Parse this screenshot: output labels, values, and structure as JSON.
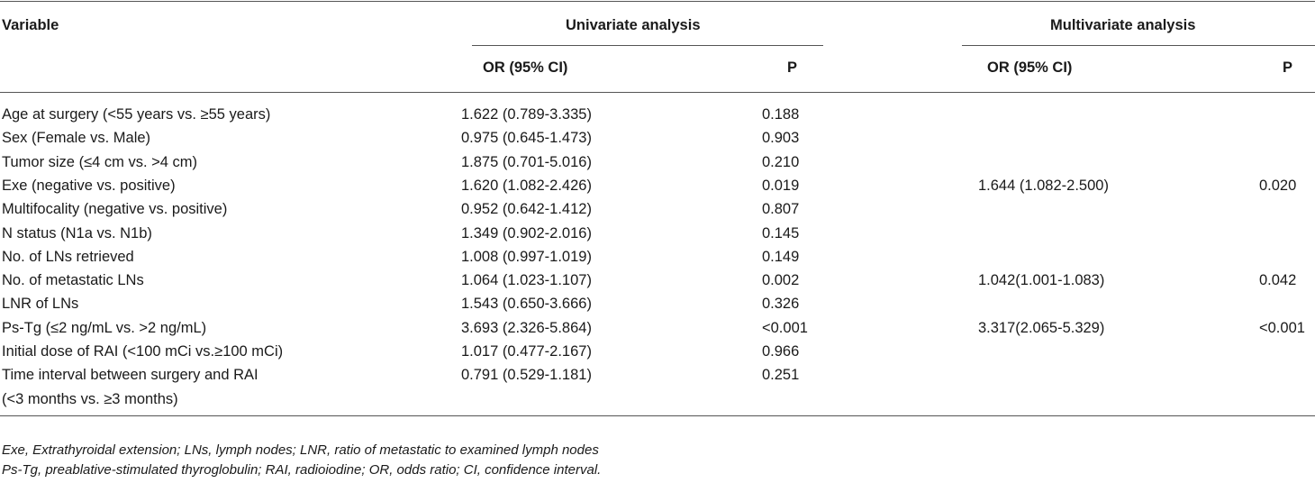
{
  "table": {
    "header": {
      "variable": "Variable",
      "univariate": "Univariate analysis",
      "multivariate": "Multivariate analysis",
      "uni_or": "OR (95% CI)",
      "uni_p": "P",
      "multi_or": "OR (95% CI)",
      "multi_p": "P"
    },
    "rows": [
      {
        "variable": "Age at surgery (<55 years vs. ≥55 years)",
        "uni_or": "1.622 (0.789-3.335)",
        "uni_p": "0.188",
        "multi_or": "",
        "multi_p": ""
      },
      {
        "variable": "Sex (Female vs. Male)",
        "uni_or": "0.975 (0.645-1.473)",
        "uni_p": "0.903",
        "multi_or": "",
        "multi_p": ""
      },
      {
        "variable": "Tumor size (≤4 cm vs. >4 cm)",
        "uni_or": "1.875 (0.701-5.016)",
        "uni_p": "0.210",
        "multi_or": "",
        "multi_p": ""
      },
      {
        "variable": "Exe (negative vs. positive)",
        "uni_or": "1.620 (1.082-2.426)",
        "uni_p": "0.019",
        "multi_or": "1.644 (1.082-2.500)",
        "multi_p": "0.020"
      },
      {
        "variable": "Multifocality (negative vs. positive)",
        "uni_or": "0.952 (0.642-1.412)",
        "uni_p": "0.807",
        "multi_or": "",
        "multi_p": ""
      },
      {
        "variable": "N status (N1a vs. N1b)",
        "uni_or": "1.349 (0.902-2.016)",
        "uni_p": "0.145",
        "multi_or": "",
        "multi_p": ""
      },
      {
        "variable": "No. of LNs retrieved",
        "uni_or": "1.008 (0.997-1.019)",
        "uni_p": "0.149",
        "multi_or": "",
        "multi_p": ""
      },
      {
        "variable": "No. of metastatic LNs",
        "uni_or": "1.064 (1.023-1.107)",
        "uni_p": "0.002",
        "multi_or": "1.042(1.001-1.083)",
        "multi_p": "0.042"
      },
      {
        "variable": "LNR of LNs",
        "uni_or": "1.543 (0.650-3.666)",
        "uni_p": "0.326",
        "multi_or": "",
        "multi_p": ""
      },
      {
        "variable": "Ps-Tg (≤2 ng/mL vs. >2 ng/mL)",
        "uni_or": "3.693 (2.326-5.864)",
        "uni_p": "<0.001",
        "multi_or": "3.317(2.065-5.329)",
        "multi_p": "<0.001"
      },
      {
        "variable": "Initial dose of RAI (<100 mCi vs.≥100 mCi)",
        "uni_or": "1.017 (0.477-2.167)",
        "uni_p": "0.966",
        "multi_or": "",
        "multi_p": ""
      },
      {
        "variable": "Time interval between surgery and RAI",
        "uni_or": "0.791 (0.529-1.181)",
        "uni_p": "0.251",
        "multi_or": "",
        "multi_p": ""
      }
    ],
    "last_row_continuation": "(<3 months vs. ≥3 months)"
  },
  "footnotes": [
    "Exe, Extrathyroidal extension; LNs, lymph nodes; LNR, ratio of metastatic to examined lymph nodes",
    "Ps-Tg, preablative-stimulated thyroglobulin; RAI, radioiodine; OR, odds ratio; CI, confidence interval."
  ]
}
